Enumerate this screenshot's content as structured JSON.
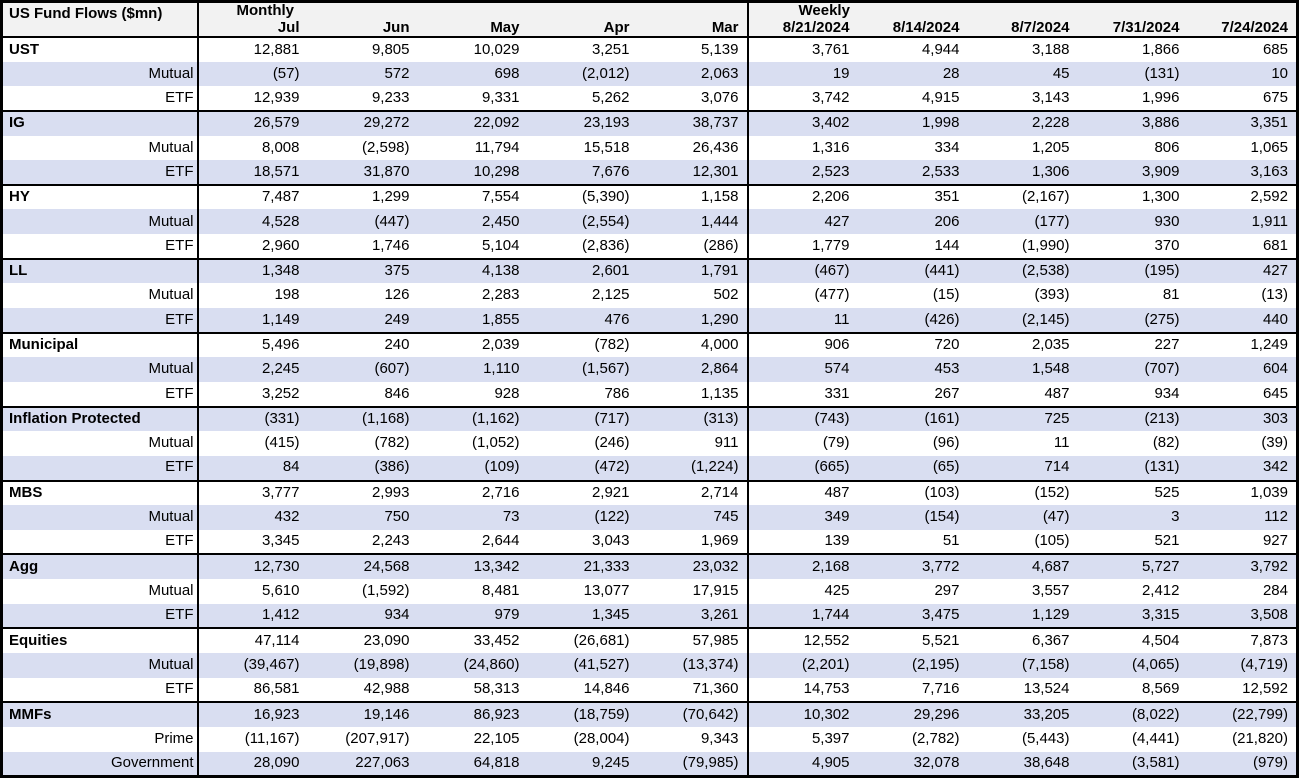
{
  "title": "US Fund Flows ($mn)",
  "sections": [
    {
      "label": "Monthly",
      "columns": [
        "Jul",
        "Jun",
        "May",
        "Apr",
        "Mar"
      ]
    },
    {
      "label": "Weekly",
      "columns": [
        "8/21/2024",
        "8/14/2024",
        "8/7/2024",
        "7/31/2024",
        "7/24/2024"
      ]
    }
  ],
  "groups": [
    {
      "rows": [
        {
          "label": "UST",
          "values": [
            "12,881",
            "9,805",
            "10,029",
            "3,251",
            "5,139",
            "3,761",
            "4,944",
            "3,188",
            "1,866",
            "685"
          ]
        },
        {
          "label": "Mutual",
          "values": [
            "(57)",
            "572",
            "698",
            "(2,012)",
            "2,063",
            "19",
            "28",
            "45",
            "(131)",
            "10"
          ]
        },
        {
          "label": "ETF",
          "values": [
            "12,939",
            "9,233",
            "9,331",
            "5,262",
            "3,076",
            "3,742",
            "4,915",
            "3,143",
            "1,996",
            "675"
          ]
        }
      ]
    },
    {
      "rows": [
        {
          "label": "IG",
          "values": [
            "26,579",
            "29,272",
            "22,092",
            "23,193",
            "38,737",
            "3,402",
            "1,998",
            "2,228",
            "3,886",
            "3,351"
          ]
        },
        {
          "label": "Mutual",
          "values": [
            "8,008",
            "(2,598)",
            "11,794",
            "15,518",
            "26,436",
            "1,316",
            "334",
            "1,205",
            "806",
            "1,065"
          ]
        },
        {
          "label": "ETF",
          "values": [
            "18,571",
            "31,870",
            "10,298",
            "7,676",
            "12,301",
            "2,523",
            "2,533",
            "1,306",
            "3,909",
            "3,163"
          ]
        }
      ]
    },
    {
      "rows": [
        {
          "label": "HY",
          "values": [
            "7,487",
            "1,299",
            "7,554",
            "(5,390)",
            "1,158",
            "2,206",
            "351",
            "(2,167)",
            "1,300",
            "2,592"
          ]
        },
        {
          "label": "Mutual",
          "values": [
            "4,528",
            "(447)",
            "2,450",
            "(2,554)",
            "1,444",
            "427",
            "206",
            "(177)",
            "930",
            "1,911"
          ]
        },
        {
          "label": "ETF",
          "values": [
            "2,960",
            "1,746",
            "5,104",
            "(2,836)",
            "(286)",
            "1,779",
            "144",
            "(1,990)",
            "370",
            "681"
          ]
        }
      ]
    },
    {
      "rows": [
        {
          "label": "LL",
          "values": [
            "1,348",
            "375",
            "4,138",
            "2,601",
            "1,791",
            "(467)",
            "(441)",
            "(2,538)",
            "(195)",
            "427"
          ]
        },
        {
          "label": "Mutual",
          "values": [
            "198",
            "126",
            "2,283",
            "2,125",
            "502",
            "(477)",
            "(15)",
            "(393)",
            "81",
            "(13)"
          ]
        },
        {
          "label": "ETF",
          "values": [
            "1,149",
            "249",
            "1,855",
            "476",
            "1,290",
            "11",
            "(426)",
            "(2,145)",
            "(275)",
            "440"
          ]
        }
      ]
    },
    {
      "rows": [
        {
          "label": "Municipal",
          "values": [
            "5,496",
            "240",
            "2,039",
            "(782)",
            "4,000",
            "906",
            "720",
            "2,035",
            "227",
            "1,249"
          ]
        },
        {
          "label": "Mutual",
          "values": [
            "2,245",
            "(607)",
            "1,110",
            "(1,567)",
            "2,864",
            "574",
            "453",
            "1,548",
            "(707)",
            "604"
          ]
        },
        {
          "label": "ETF",
          "values": [
            "3,252",
            "846",
            "928",
            "786",
            "1,135",
            "331",
            "267",
            "487",
            "934",
            "645"
          ]
        }
      ]
    },
    {
      "rows": [
        {
          "label": "Inflation Protected",
          "values": [
            "(331)",
            "(1,168)",
            "(1,162)",
            "(717)",
            "(313)",
            "(743)",
            "(161)",
            "725",
            "(213)",
            "303"
          ]
        },
        {
          "label": "Mutual",
          "values": [
            "(415)",
            "(782)",
            "(1,052)",
            "(246)",
            "911",
            "(79)",
            "(96)",
            "11",
            "(82)",
            "(39)"
          ]
        },
        {
          "label": "ETF",
          "values": [
            "84",
            "(386)",
            "(109)",
            "(472)",
            "(1,224)",
            "(665)",
            "(65)",
            "714",
            "(131)",
            "342"
          ]
        }
      ]
    },
    {
      "rows": [
        {
          "label": "MBS",
          "values": [
            "3,777",
            "2,993",
            "2,716",
            "2,921",
            "2,714",
            "487",
            "(103)",
            "(152)",
            "525",
            "1,039"
          ]
        },
        {
          "label": "Mutual",
          "values": [
            "432",
            "750",
            "73",
            "(122)",
            "745",
            "349",
            "(154)",
            "(47)",
            "3",
            "112"
          ]
        },
        {
          "label": "ETF",
          "values": [
            "3,345",
            "2,243",
            "2,644",
            "3,043",
            "1,969",
            "139",
            "51",
            "(105)",
            "521",
            "927"
          ]
        }
      ]
    },
    {
      "rows": [
        {
          "label": "Agg",
          "values": [
            "12,730",
            "24,568",
            "13,342",
            "21,333",
            "23,032",
            "2,168",
            "3,772",
            "4,687",
            "5,727",
            "3,792"
          ]
        },
        {
          "label": "Mutual",
          "values": [
            "5,610",
            "(1,592)",
            "8,481",
            "13,077",
            "17,915",
            "425",
            "297",
            "3,557",
            "2,412",
            "284"
          ]
        },
        {
          "label": "ETF",
          "values": [
            "1,412",
            "934",
            "979",
            "1,345",
            "3,261",
            "1,744",
            "3,475",
            "1,129",
            "3,315",
            "3,508"
          ]
        }
      ]
    },
    {
      "rows": [
        {
          "label": "Equities",
          "values": [
            "47,114",
            "23,090",
            "33,452",
            "(26,681)",
            "57,985",
            "12,552",
            "5,521",
            "6,367",
            "4,504",
            "7,873"
          ]
        },
        {
          "label": "Mutual",
          "values": [
            "(39,467)",
            "(19,898)",
            "(24,860)",
            "(41,527)",
            "(13,374)",
            "(2,201)",
            "(2,195)",
            "(7,158)",
            "(4,065)",
            "(4,719)"
          ]
        },
        {
          "label": "ETF",
          "values": [
            "86,581",
            "42,988",
            "58,313",
            "14,846",
            "71,360",
            "14,753",
            "7,716",
            "13,524",
            "8,569",
            "12,592"
          ]
        }
      ]
    },
    {
      "rows": [
        {
          "label": "MMFs",
          "values": [
            "16,923",
            "19,146",
            "86,923",
            "(18,759)",
            "(70,642)",
            "10,302",
            "29,296",
            "33,205",
            "(8,022)",
            "(22,799)"
          ]
        },
        {
          "label": "Prime",
          "values": [
            "(11,167)",
            "(207,917)",
            "22,105",
            "(28,004)",
            "9,343",
            "5,397",
            "(2,782)",
            "(5,443)",
            "(4,441)",
            "(21,820)"
          ]
        },
        {
          "label": "Government",
          "values": [
            "28,090",
            "227,063",
            "64,818",
            "9,245",
            "(79,985)",
            "4,905",
            "32,078",
            "38,648",
            "(3,581)",
            "(979)"
          ]
        }
      ]
    }
  ],
  "colors": {
    "stripe_row_bg": "#d9def1",
    "header_bg": "#f2f2f2",
    "border": "#000000",
    "text": "#000000",
    "background": "#ffffff"
  }
}
